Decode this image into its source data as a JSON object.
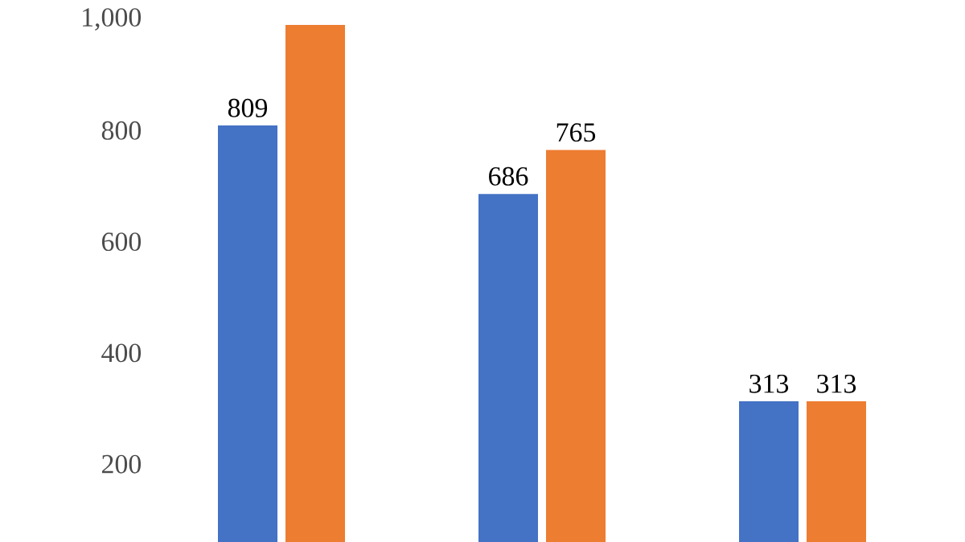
{
  "chart_data": {
    "type": "bar",
    "categories": [
      null,
      null,
      null
    ],
    "series": [
      {
        "color": "#4472c4",
        "values": [
          809,
          686,
          313
        ],
        "value_labels": [
          "809",
          "686",
          "313"
        ]
      },
      {
        "color": "#ed7d31",
        "values": [
          990,
          765,
          313
        ],
        "value_labels": [
          null,
          "765",
          "313"
        ]
      }
    ],
    "ylim": [
      60,
      1000
    ],
    "yticks": [
      200,
      400,
      600,
      800,
      {
        "value": 1000,
        "label": "1,000"
      }
    ]
  }
}
